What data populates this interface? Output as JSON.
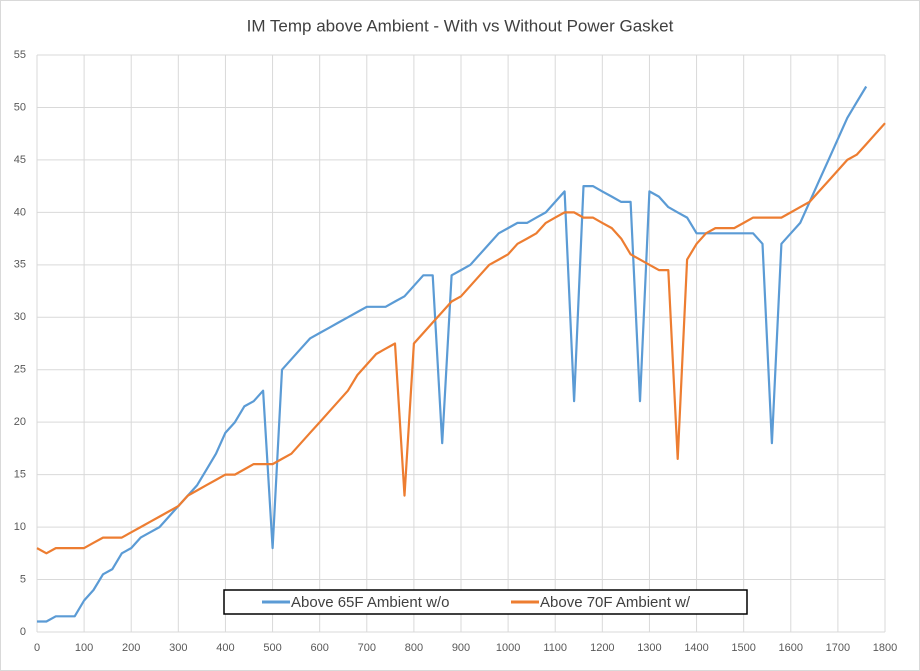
{
  "chart_data": {
    "type": "line",
    "title": "IM Temp above Ambient - With vs Without Power Gasket",
    "x": [
      0,
      20,
      40,
      60,
      80,
      100,
      120,
      140,
      160,
      180,
      200,
      220,
      240,
      260,
      280,
      300,
      320,
      340,
      360,
      380,
      400,
      420,
      440,
      460,
      480,
      500,
      520,
      540,
      560,
      580,
      600,
      620,
      640,
      660,
      680,
      700,
      720,
      740,
      760,
      780,
      800,
      820,
      840,
      860,
      880,
      900,
      920,
      940,
      960,
      980,
      1000,
      1020,
      1040,
      1060,
      1080,
      1100,
      1120,
      1140,
      1160,
      1180,
      1200,
      1220,
      1240,
      1260,
      1280,
      1300,
      1320,
      1340,
      1360,
      1380,
      1400,
      1420,
      1440,
      1460,
      1480,
      1500,
      1520,
      1540,
      1560,
      1580,
      1600,
      1620,
      1640,
      1660,
      1680,
      1700,
      1720,
      1740,
      1760,
      1780,
      1800
    ],
    "series": [
      {
        "name": "Above 65F Ambient w/o",
        "color": "#5b9bd5",
        "values": [
          1,
          1,
          1.5,
          1.5,
          1.5,
          3,
          4,
          5.5,
          6,
          7.5,
          8,
          9,
          9.5,
          10,
          11,
          12,
          13,
          14,
          15.5,
          17,
          19,
          20,
          21.5,
          22,
          23,
          8,
          25,
          26,
          27,
          28,
          28.5,
          29,
          29.5,
          30,
          30.5,
          31,
          31,
          31,
          31.5,
          32,
          33,
          34,
          34,
          18,
          34,
          34.5,
          35,
          36,
          37,
          38,
          38.5,
          39,
          39,
          39.5,
          40,
          41,
          42,
          22,
          42.5,
          42.5,
          42,
          41.5,
          41,
          41,
          22,
          42,
          41.5,
          40.5,
          40,
          39.5,
          38,
          38,
          38,
          38,
          38,
          38,
          38,
          37,
          18,
          37,
          38,
          39,
          41,
          43,
          45,
          47,
          49,
          50.5,
          52,
          null,
          null
        ]
      },
      {
        "name": "Above 70F Ambient w/",
        "color": "#ed7d31",
        "values": [
          8,
          7.5,
          8,
          8,
          8,
          8,
          8.5,
          9,
          9,
          9,
          9.5,
          10,
          10.5,
          11,
          11.5,
          12,
          13,
          13.5,
          14,
          14.5,
          15,
          15,
          15.5,
          16,
          16,
          16,
          16.5,
          17,
          18,
          19,
          20,
          21,
          22,
          23,
          24.5,
          25.5,
          26.5,
          27,
          27.5,
          13,
          27.5,
          28.5,
          29.5,
          30.5,
          31.5,
          32,
          33,
          34,
          35,
          35.5,
          36,
          37,
          37.5,
          38,
          39,
          39.5,
          40,
          40,
          39.5,
          39.5,
          39,
          38.5,
          37.5,
          36,
          35.5,
          35,
          34.5,
          34.5,
          16.5,
          35.5,
          37,
          38,
          38.5,
          38.5,
          38.5,
          39,
          39.5,
          39.5,
          39.5,
          39.5,
          40,
          40.5,
          41,
          42,
          43,
          44,
          45,
          45.5,
          46.5,
          47.5,
          48.5
        ]
      }
    ],
    "xlim": [
      0,
      1800
    ],
    "xticks": [
      0,
      100,
      200,
      300,
      400,
      500,
      600,
      700,
      800,
      900,
      1000,
      1100,
      1200,
      1300,
      1400,
      1500,
      1600,
      1700,
      1800
    ],
    "ylim": [
      0,
      55
    ],
    "yticks": [
      0,
      5,
      10,
      15,
      20,
      25,
      30,
      35,
      40,
      45,
      50,
      55
    ],
    "grid": true
  }
}
